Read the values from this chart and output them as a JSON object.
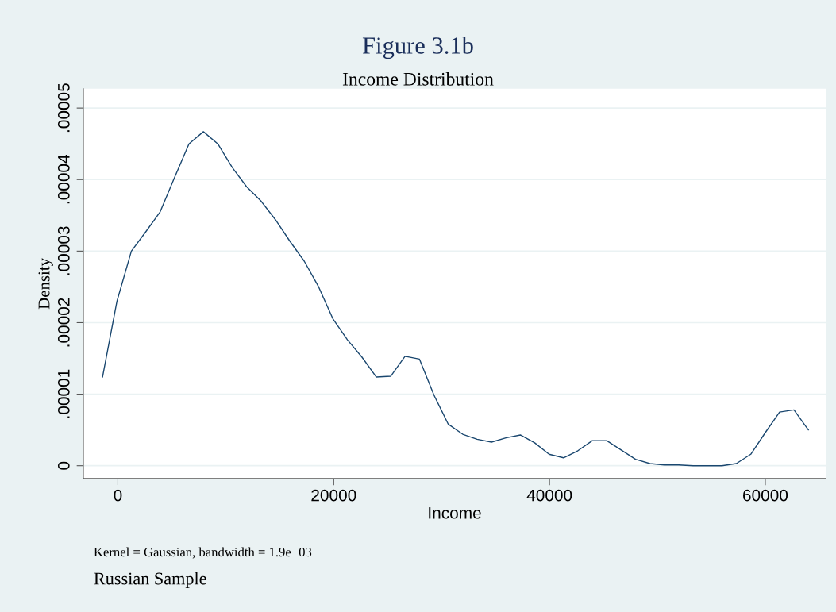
{
  "chart_data": {
    "type": "line",
    "title": "Figure 3.1b",
    "subtitle": "Income Distribution",
    "xlabel": "Income",
    "ylabel": "Density",
    "x": [
      -1420,
      -85,
      1250,
      2585,
      3920,
      5255,
      6590,
      7925,
      9260,
      10595,
      11930,
      13265,
      14600,
      15935,
      17270,
      18605,
      19940,
      21275,
      22610,
      23945,
      25280,
      26615,
      27950,
      29285,
      30620,
      31955,
      33290,
      34625,
      35960,
      37295,
      38630,
      39965,
      41300,
      42635,
      43970,
      45305,
      46640,
      47975,
      49310,
      50645,
      51980,
      53315,
      54650,
      55985,
      57320,
      58655,
      59990,
      61325,
      62660,
      63995
    ],
    "series": [
      {
        "color": "#1a476f",
        "values": [
          1.24e-05,
          2.3e-05,
          3e-05,
          3.27e-05,
          3.55e-05,
          4.03e-05,
          4.5e-05,
          4.67e-05,
          4.5e-05,
          4.17e-05,
          3.9e-05,
          3.7e-05,
          3.44e-05,
          3.14e-05,
          2.86e-05,
          2.5e-05,
          2.05e-05,
          1.76e-05,
          1.52e-05,
          1.24e-05,
          1.25e-05,
          1.53e-05,
          1.49e-05,
          9.9e-06,
          5.8e-06,
          4.4e-06,
          3.7e-06,
          3.3e-06,
          3.9e-06,
          4.3e-06,
          3.2e-06,
          1.6e-06,
          1.1e-06,
          2.1e-06,
          3.5e-06,
          3.5e-06,
          2.2e-06,
          9e-07,
          3e-07,
          1e-07,
          1e-07,
          0,
          0,
          0,
          3e-07,
          1.6e-06,
          4.6e-06,
          7.5e-06,
          7.8e-06,
          5e-06
        ]
      }
    ],
    "xlim": [
      -3200,
      65600
    ],
    "xticks": [
      0,
      20000,
      40000,
      60000
    ],
    "ylim": [
      -1.8e-06,
      5.27e-05
    ],
    "yticks": [
      0,
      {
        "value": 1e-05,
        "label": ".00001"
      },
      {
        "value": 2e-05,
        "label": ".00002"
      },
      {
        "value": 3e-05,
        "label": ".00003"
      },
      {
        "value": 4e-05,
        "label": ".00004"
      },
      {
        "value": 5e-05,
        "label": ".00005"
      }
    ],
    "grid": "y",
    "marker": "none",
    "line_style": "solid",
    "annotations": [
      "Kernel = Gaussian, bandwidth = 1.9e+03",
      "Russian Sample"
    ]
  }
}
